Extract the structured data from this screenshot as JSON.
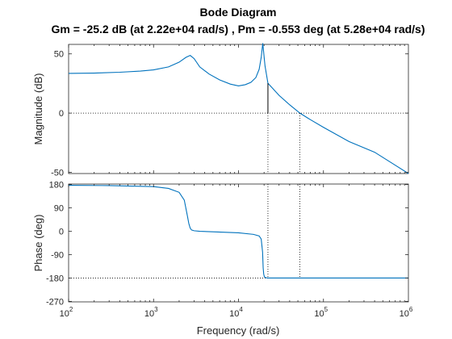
{
  "chart_data": {
    "type": "line",
    "title": "Bode Diagram",
    "subtitle": "Gm = -25.2 dB (at 2.22e+04 rad/s) ,  Pm = -0.553 deg (at 5.28e+04 rad/s)",
    "xlabel": "Frequency  (rad/s)",
    "xscale": "log",
    "xlim": [
      100,
      1000000
    ],
    "x_ticks": [
      {
        "value": 100,
        "base": "10",
        "exp": "2"
      },
      {
        "value": 1000,
        "base": "10",
        "exp": "3"
      },
      {
        "value": 10000,
        "base": "10",
        "exp": "4"
      },
      {
        "value": 100000,
        "base": "10",
        "exp": "5"
      },
      {
        "value": 1000000,
        "base": "10",
        "exp": "6"
      }
    ],
    "grid": false,
    "line_color": "#0072BD",
    "margin_color": "#000000",
    "gain_margin": {
      "value_db": -25.2,
      "frequency": 22200
    },
    "phase_margin": {
      "value_deg": -0.553,
      "frequency": 52800
    },
    "magnitude": {
      "ylabel": "Magnitude (dB)",
      "ylim": [
        -51,
        58
      ],
      "y_ticks": [
        "50",
        "0",
        "-50"
      ],
      "y_tick_values": [
        50,
        0,
        -50
      ],
      "reference_line": 0,
      "x": [
        100,
        200,
        400,
        700,
        1000,
        1500,
        2000,
        2400,
        2700,
        3000,
        3500,
        4500,
        6000,
        8000,
        10000,
        12000,
        14000,
        16000,
        17500,
        18500,
        19300,
        20500,
        22200,
        30000,
        40000,
        52800,
        70000,
        100000,
        200000,
        400000,
        700000,
        1000000
      ],
      "y": [
        33.5,
        33.8,
        34.5,
        35.5,
        36.5,
        39,
        43,
        47,
        48.7,
        46,
        39,
        33,
        28,
        24.5,
        23,
        24,
        26,
        30,
        37,
        47,
        59,
        40,
        25.2,
        15,
        7,
        0,
        -5.5,
        -12,
        -24,
        -33,
        -44,
        -51
      ]
    },
    "phase": {
      "ylabel": "Phase (deg)",
      "ylim": [
        -272,
        182
      ],
      "y_ticks": [
        "180",
        "90",
        "0",
        "-90",
        "-180",
        "-270"
      ],
      "y_tick_values": [
        180,
        90,
        0,
        -90,
        -180,
        -270
      ],
      "reference_line": -180,
      "x": [
        100,
        300,
        1000,
        1500,
        2000,
        2300,
        2500,
        2600,
        2700,
        2800,
        3000,
        3500,
        5000,
        10000,
        15000,
        17500,
        18500,
        19200,
        19500,
        19800,
        20200,
        21000,
        22200,
        30000,
        100000,
        1000000
      ],
      "y": [
        177,
        176,
        172,
        165,
        150,
        120,
        60,
        30,
        12,
        5,
        2,
        0,
        -2,
        -6,
        -12,
        -18,
        -30,
        -80,
        -140,
        -165,
        -176,
        -179,
        -180,
        -180,
        -180,
        -180
      ]
    }
  }
}
